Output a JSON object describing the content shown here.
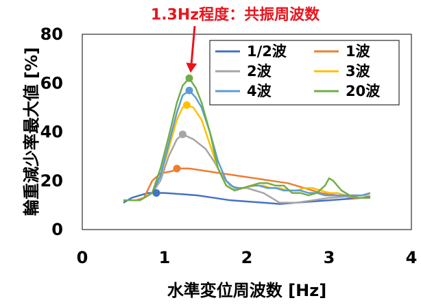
{
  "chart_data": {
    "type": "line",
    "title": "",
    "xlabel": "水準変位周波数 [Hz]",
    "ylabel": "輪重減少率最大値 [%]",
    "xlim": [
      0,
      4
    ],
    "ylim": [
      0,
      80
    ],
    "xticks": [
      0,
      1,
      2,
      3,
      4
    ],
    "yticks": [
      0,
      20,
      40,
      60,
      80
    ],
    "grid": false,
    "legend_position": "top-right",
    "annotation": {
      "text": "1.3Hz程度：共振周波数",
      "color": "#e8141c",
      "x": 1.3,
      "y": 62
    },
    "series": [
      {
        "name": "1/2波",
        "color": "#4472c4",
        "marker": [
          0.9,
          15
        ],
        "points": [
          [
            0.5,
            11
          ],
          [
            0.55,
            12
          ],
          [
            0.6,
            13
          ],
          [
            0.7,
            14
          ],
          [
            0.8,
            15
          ],
          [
            0.9,
            15
          ],
          [
            1.0,
            15
          ],
          [
            1.2,
            14.5
          ],
          [
            1.4,
            14
          ],
          [
            1.6,
            13
          ],
          [
            1.8,
            12
          ],
          [
            2.0,
            11.5
          ],
          [
            2.2,
            11
          ],
          [
            2.4,
            10.5
          ],
          [
            2.6,
            11
          ],
          [
            2.8,
            11.5
          ],
          [
            3.0,
            12
          ],
          [
            3.2,
            12.5
          ],
          [
            3.4,
            13
          ],
          [
            3.5,
            13.5
          ]
        ]
      },
      {
        "name": "1波",
        "color": "#ed7d31",
        "marker": [
          1.15,
          25
        ],
        "points": [
          [
            0.5,
            12
          ],
          [
            0.65,
            12
          ],
          [
            0.75,
            13
          ],
          [
            0.85,
            20
          ],
          [
            0.95,
            23
          ],
          [
            1.1,
            24
          ],
          [
            1.15,
            25
          ],
          [
            1.3,
            25
          ],
          [
            1.5,
            24
          ],
          [
            1.7,
            23
          ],
          [
            1.9,
            22
          ],
          [
            2.1,
            21
          ],
          [
            2.3,
            20
          ],
          [
            2.5,
            19
          ],
          [
            2.7,
            17
          ],
          [
            2.9,
            15
          ],
          [
            3.1,
            14
          ],
          [
            3.3,
            13
          ],
          [
            3.5,
            13
          ]
        ]
      },
      {
        "name": "2波",
        "color": "#a5a5a5",
        "marker": [
          1.22,
          39
        ],
        "points": [
          [
            0.5,
            12
          ],
          [
            0.7,
            12
          ],
          [
            0.85,
            15
          ],
          [
            0.95,
            20
          ],
          [
            1.05,
            30
          ],
          [
            1.15,
            37
          ],
          [
            1.22,
            39
          ],
          [
            1.35,
            37
          ],
          [
            1.5,
            33
          ],
          [
            1.6,
            28
          ],
          [
            1.7,
            22
          ],
          [
            1.8,
            18
          ],
          [
            1.9,
            17
          ],
          [
            2.0,
            17
          ],
          [
            2.1,
            16
          ],
          [
            2.2,
            15
          ],
          [
            2.3,
            13
          ],
          [
            2.4,
            11
          ],
          [
            2.6,
            11
          ],
          [
            2.8,
            12
          ],
          [
            3.0,
            13
          ],
          [
            3.2,
            13.5
          ],
          [
            3.4,
            14
          ],
          [
            3.5,
            14
          ]
        ]
      },
      {
        "name": "3波",
        "color": "#ffc000",
        "marker": [
          1.27,
          51
        ],
        "points": [
          [
            0.5,
            12
          ],
          [
            0.7,
            12
          ],
          [
            0.85,
            15
          ],
          [
            0.95,
            22
          ],
          [
            1.05,
            33
          ],
          [
            1.15,
            45
          ],
          [
            1.22,
            50
          ],
          [
            1.27,
            51
          ],
          [
            1.35,
            50
          ],
          [
            1.45,
            45
          ],
          [
            1.55,
            35
          ],
          [
            1.65,
            25
          ],
          [
            1.75,
            18
          ],
          [
            1.85,
            16
          ],
          [
            1.95,
            17
          ],
          [
            2.1,
            18
          ],
          [
            2.2,
            18
          ],
          [
            2.3,
            17
          ],
          [
            2.4,
            17
          ],
          [
            2.5,
            16
          ],
          [
            2.6,
            16
          ],
          [
            2.7,
            17
          ],
          [
            2.8,
            17
          ],
          [
            2.9,
            16
          ],
          [
            3.0,
            15
          ],
          [
            3.1,
            15
          ],
          [
            3.2,
            14
          ],
          [
            3.3,
            14
          ],
          [
            3.4,
            14
          ],
          [
            3.5,
            14
          ]
        ]
      },
      {
        "name": "4波",
        "color": "#5b9bd5",
        "marker": [
          1.3,
          57
        ],
        "points": [
          [
            0.5,
            12
          ],
          [
            0.7,
            12
          ],
          [
            0.85,
            15
          ],
          [
            0.95,
            22
          ],
          [
            1.05,
            35
          ],
          [
            1.15,
            48
          ],
          [
            1.22,
            55
          ],
          [
            1.3,
            57
          ],
          [
            1.38,
            54
          ],
          [
            1.45,
            50
          ],
          [
            1.55,
            40
          ],
          [
            1.65,
            28
          ],
          [
            1.75,
            20
          ],
          [
            1.85,
            17
          ],
          [
            1.95,
            17
          ],
          [
            2.05,
            18
          ],
          [
            2.15,
            18
          ],
          [
            2.25,
            17
          ],
          [
            2.35,
            17
          ],
          [
            2.45,
            16
          ],
          [
            2.55,
            16
          ],
          [
            2.65,
            16
          ],
          [
            2.75,
            15
          ],
          [
            2.85,
            15
          ],
          [
            2.95,
            14
          ],
          [
            3.1,
            14
          ],
          [
            3.25,
            14
          ],
          [
            3.4,
            14
          ],
          [
            3.5,
            15
          ]
        ]
      },
      {
        "name": "20波",
        "color": "#70ad47",
        "marker": [
          1.3,
          62
        ],
        "points": [
          [
            0.5,
            12
          ],
          [
            0.7,
            12
          ],
          [
            0.85,
            15
          ],
          [
            0.95,
            25
          ],
          [
            1.05,
            38
          ],
          [
            1.15,
            52
          ],
          [
            1.22,
            59
          ],
          [
            1.3,
            62
          ],
          [
            1.38,
            58
          ],
          [
            1.45,
            52
          ],
          [
            1.55,
            40
          ],
          [
            1.65,
            25
          ],
          [
            1.75,
            18
          ],
          [
            1.85,
            16
          ],
          [
            1.95,
            17
          ],
          [
            2.05,
            18
          ],
          [
            2.15,
            19
          ],
          [
            2.25,
            19
          ],
          [
            2.35,
            18
          ],
          [
            2.45,
            18
          ],
          [
            2.55,
            15
          ],
          [
            2.65,
            15
          ],
          [
            2.75,
            14
          ],
          [
            2.85,
            15
          ],
          [
            2.95,
            18
          ],
          [
            3.0,
            21
          ],
          [
            3.05,
            20
          ],
          [
            3.15,
            16
          ],
          [
            3.25,
            14
          ],
          [
            3.35,
            13
          ],
          [
            3.5,
            13
          ]
        ]
      }
    ]
  }
}
